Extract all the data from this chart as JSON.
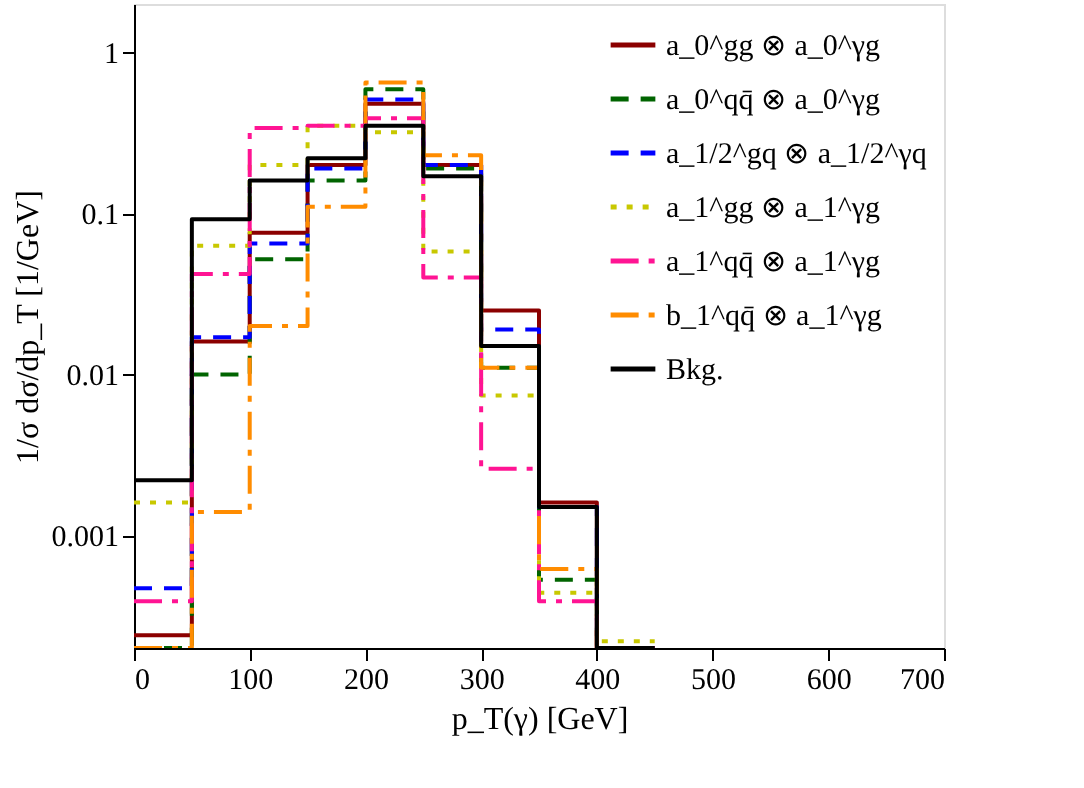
{
  "chart_data": {
    "type": "histogram",
    "xlabel": "p_T(γ) [GeV]",
    "ylabel": "1/σ dσ/dp_T [1/GeV]",
    "bins": [
      0,
      50,
      100,
      150,
      200,
      250,
      300,
      350,
      400,
      450
    ],
    "series": [
      {
        "name": "a_0^gg ⊗ a_0^γg",
        "color": "#8b0000",
        "line_style": "solid",
        "values": [
          0.00024,
          0.016,
          0.076,
          0.2,
          0.48,
          0.2,
          0.025,
          0.0016,
          null
        ]
      },
      {
        "name": "a_0^qq̄ ⊗ a_0^γg",
        "color": "#006400",
        "line_style": "dashed",
        "values": [
          null,
          0.01,
          0.052,
          0.16,
          0.59,
          0.19,
          0.011,
          0.00053,
          null
        ]
      },
      {
        "name": "a_1/2^gq ⊗ a_1/2^γq",
        "color": "#0000ff",
        "line_style": "dashed",
        "values": [
          0.00047,
          0.017,
          0.065,
          0.19,
          0.51,
          0.2,
          0.019,
          0.0015,
          null
        ]
      },
      {
        "name": "a_1^gg ⊗ a_1^γg",
        "color": "#c8c800",
        "line_style": "dotted",
        "values": [
          0.0016,
          0.063,
          0.2,
          0.35,
          0.32,
          0.058,
          0.0074,
          0.00044,
          0.00022
        ]
      },
      {
        "name": "a_1^qq̄ ⊗ a_1^γg",
        "color": "#ff1493",
        "line_style": "dashdot",
        "values": [
          0.00039,
          0.042,
          0.34,
          0.35,
          0.39,
          0.04,
          0.0026,
          0.00039,
          null
        ]
      },
      {
        "name": "b_1^qq̄ ⊗ a_1^γg",
        "color": "#ff8c00",
        "line_style": "dashdot",
        "values": [
          null,
          0.0014,
          0.02,
          0.11,
          0.65,
          0.23,
          0.011,
          0.00062,
          null
        ]
      },
      {
        "name": "Bkg.",
        "color": "#000000",
        "line_style": "solid",
        "values": [
          0.0022,
          0.092,
          0.16,
          0.22,
          0.35,
          0.17,
          0.015,
          0.0015,
          null
        ]
      }
    ],
    "xlim": [
      0,
      700
    ],
    "xticks": [
      0,
      100,
      200,
      300,
      400,
      500,
      600,
      700
    ],
    "ylim": [
      0.0002,
      2
    ],
    "yticks": [
      0.001,
      0.01,
      0.1,
      1
    ],
    "log": "y",
    "grid": false,
    "legend": "top right"
  }
}
